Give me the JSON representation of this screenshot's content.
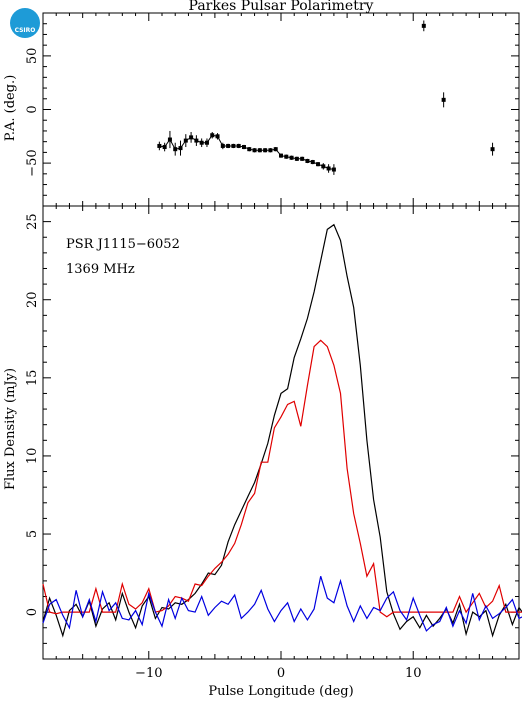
{
  "logo": {
    "text": "CSIRO",
    "color": "#1e9bd7"
  },
  "chart_data": {
    "type": "line",
    "title": "Parkes Pulsar Polarimetry",
    "xlabel": "Pulse Longitude (deg)",
    "xlim": [
      -18,
      18
    ],
    "x_ticks": [
      -10,
      0,
      10
    ],
    "annotations": [
      "PSR J1115−6052",
      "1369 MHz"
    ],
    "panels": [
      {
        "name": "pa",
        "ylabel": "P.A. (deg.)",
        "ylim": [
          -90,
          90
        ],
        "y_ticks": [
          -50,
          0,
          50
        ],
        "marker": "square-with-errorbars",
        "x": [
          -9.2,
          -8.8,
          -8.4,
          -8.0,
          -7.6,
          -7.2,
          -6.8,
          -6.4,
          -6.0,
          -5.6,
          -5.2,
          -4.8,
          -4.4,
          -4.0,
          -3.6,
          -3.2,
          -2.8,
          -2.4,
          -2.0,
          -1.6,
          -1.2,
          -0.8,
          -0.4,
          0.0,
          0.4,
          0.8,
          1.2,
          1.6,
          2.0,
          2.4,
          2.8,
          3.2,
          3.6,
          4.0,
          10.8,
          12.3,
          16.0
        ],
        "y": [
          -34,
          -35,
          -28,
          -37,
          -36,
          -29,
          -26,
          -29,
          -31,
          -31,
          -24,
          -25,
          -34,
          -34,
          -34,
          -34,
          -35,
          -37,
          -38,
          -38,
          -38,
          -38,
          -37,
          -43,
          -44,
          -45,
          -46,
          -46,
          -48,
          -49,
          -51,
          -53,
          -55,
          -56,
          78,
          9,
          -37
        ],
        "err": [
          4,
          4,
          8,
          6,
          7,
          6,
          5,
          5,
          4,
          4,
          3,
          3,
          3,
          2,
          2,
          2,
          2,
          2,
          2,
          2,
          2,
          2,
          2,
          2,
          2,
          2,
          2,
          2,
          2,
          2,
          2,
          3,
          4,
          5,
          5,
          7,
          6
        ]
      },
      {
        "name": "flux",
        "ylabel": "Flux Density (mJy)",
        "ylim": [
          -3,
          26
        ],
        "y_ticks": [
          0,
          5,
          10,
          15,
          20,
          25
        ],
        "x_start": -18,
        "x_step": 0.5,
        "series": [
          {
            "color": "#000000",
            "values": [
              -0.6,
              0.9,
              -0.2,
              -1.5,
              0.1,
              0.5,
              -0.3,
              0.7,
              -0.9,
              0.2,
              0.6,
              -0.5,
              1.2,
              0.0,
              -1.0,
              0.4,
              1.0,
              -0.4,
              0.3,
              0.2,
              0.6,
              0.5,
              0.8,
              1.2,
              1.8,
              2.5,
              2.4,
              3.0,
              4.5,
              5.6,
              6.5,
              7.4,
              8.3,
              9.5,
              10.8,
              12.6,
              14.0,
              14.3,
              16.3,
              17.5,
              18.8,
              20.5,
              22.5,
              24.5,
              24.8,
              23.8,
              21.5,
              19.5,
              15.8,
              11.0,
              7.2,
              4.8,
              1.3,
              -0.1,
              -1.1,
              -0.6,
              -0.3,
              -1.0,
              -0.2,
              -0.9,
              -0.4,
              0.2,
              -0.7,
              0.5,
              -1.4,
              0.0,
              -0.3,
              0.1,
              -1.5,
              -0.2,
              0.5,
              -0.8,
              0.3,
              -0.3,
              -0.5,
              0.2,
              -0.1,
              -0.4,
              -0.9,
              -0.6,
              -0.9,
              -0.7,
              0.1
            ]
          },
          {
            "color": "#e00000",
            "values": [
              1.8,
              0.0,
              -0.1,
              0.0,
              0.0,
              0.0,
              0.0,
              0.0,
              1.5,
              0.0,
              0.0,
              0.0,
              1.8,
              0.5,
              0.2,
              0.6,
              1.5,
              0.0,
              0.1,
              0.4,
              1.0,
              0.9,
              0.7,
              1.8,
              1.7,
              2.3,
              2.8,
              3.2,
              3.7,
              4.4,
              5.6,
              7.0,
              7.6,
              9.6,
              9.6,
              11.8,
              12.5,
              13.3,
              13.5,
              11.9,
              14.5,
              17.0,
              17.4,
              17.0,
              15.8,
              14.0,
              9.2,
              6.3,
              4.4,
              2.3,
              3.1,
              0.0,
              -0.3,
              0.0,
              0.0,
              0.0,
              0.0,
              0.0,
              0.0,
              0.0,
              0.0,
              0.0,
              0.0,
              1.0,
              0.0,
              0.6,
              1.2,
              0.3,
              0.7,
              1.7,
              0.0,
              0.0,
              0.0,
              0.0,
              1.3,
              0.0,
              -0.1,
              0.0,
              0.0,
              0.8,
              1.5,
              0.0,
              1.3
            ]
          },
          {
            "color": "#0000e0",
            "values": [
              -0.7,
              0.5,
              0.8,
              -0.2,
              -1.0,
              1.4,
              -0.3,
              0.8,
              -0.6,
              1.3,
              0.1,
              0.6,
              -0.4,
              -0.5,
              0.1,
              -0.8,
              1.2,
              0.0,
              -0.9,
              0.8,
              -0.4,
              0.9,
              0.1,
              0.0,
              1.0,
              -0.2,
              0.3,
              0.7,
              0.5,
              1.1,
              -0.4,
              0.0,
              0.5,
              1.4,
              0.2,
              -0.6,
              0.1,
              0.6,
              -0.6,
              0.2,
              -0.5,
              0.2,
              2.3,
              0.9,
              0.6,
              2.0,
              0.4,
              -0.6,
              0.4,
              -0.4,
              0.3,
              0.1,
              0.9,
              1.3,
              0.1,
              -0.5,
              0.9,
              -0.2,
              -1.2,
              -0.8,
              -0.6,
              0.3,
              -0.9,
              0.1,
              -0.7,
              1.2,
              -0.5,
              0.4,
              -0.4,
              -0.1,
              0.3,
              0.8,
              -0.4,
              -0.2,
              0.6,
              -1.1,
              -0.3,
              0.7,
              0.3,
              -0.2,
              1.5,
              -0.6,
              -1.0
            ]
          }
        ]
      }
    ]
  }
}
